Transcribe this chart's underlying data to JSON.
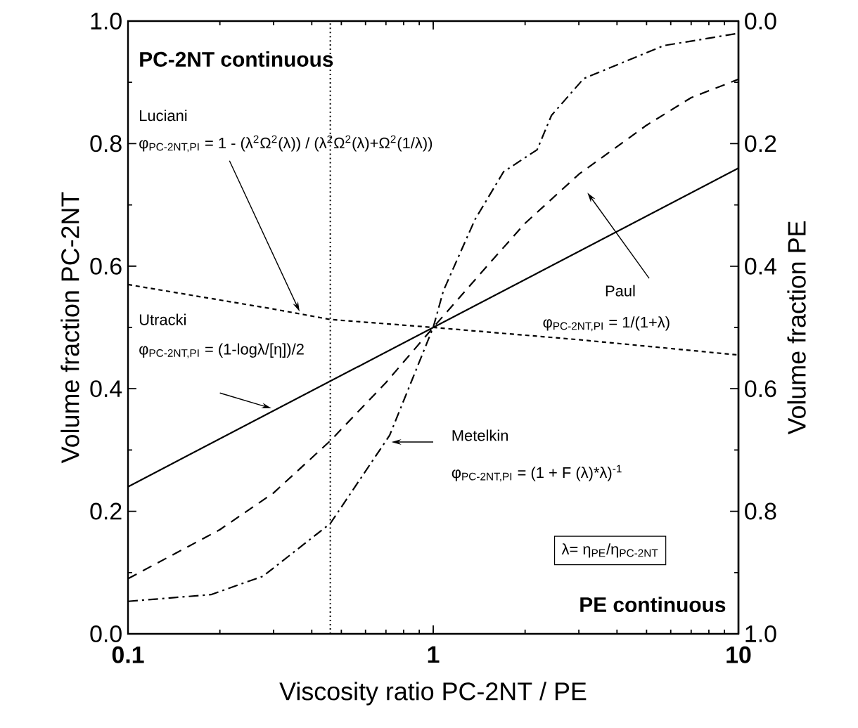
{
  "chart_data": {
    "type": "line",
    "xlabel": "Viscosity ratio PC-2NT / PE",
    "ylabel": "Volume fraction PC-2NT",
    "y2label": "Volume fraction PE",
    "log": "x",
    "xlim": [
      0.1,
      10
    ],
    "xticks": [
      0.1,
      1,
      10
    ],
    "ylim": [
      0,
      1
    ],
    "yticks": [
      {
        "value": 0,
        "label": "0.0"
      },
      0.2,
      0.4,
      0.6,
      0.8,
      {
        "value": 1,
        "label": "1.0"
      }
    ],
    "y2lim": [
      1,
      0
    ],
    "y2ticks": [
      {
        "value": 0,
        "label": "0.0"
      },
      0.2,
      0.4,
      0.6,
      0.8,
      {
        "value": 1,
        "label": "1.0"
      }
    ],
    "series": [
      {
        "color": "#000000",
        "line_style": "solid",
        "x": [
          0.1,
          1,
          10
        ],
        "values": [
          0.24,
          0.5,
          0.76
        ]
      },
      {
        "color": "#000000",
        "line_style": "dashed",
        "x": [
          0.1,
          0.2,
          0.3,
          0.46,
          0.7,
          1,
          1.5,
          2,
          3,
          5,
          7,
          10
        ],
        "values": [
          0.09,
          0.17,
          0.23,
          0.315,
          0.41,
          0.5,
          0.6,
          0.67,
          0.75,
          0.83,
          0.875,
          0.905
        ]
      },
      {
        "color": "#000000",
        "line_style": "dashdot",
        "x": [
          0.1,
          0.187,
          0.277,
          0.46,
          0.72,
          1,
          1.08,
          1.37,
          1.7,
          2.19,
          2.44,
          3.11,
          5.7,
          10
        ],
        "values": [
          0.053,
          0.064,
          0.094,
          0.18,
          0.324,
          0.5,
          0.56,
          0.676,
          0.754,
          0.79,
          0.846,
          0.906,
          0.96,
          0.98
        ]
      },
      {
        "color": "#000000",
        "line_style": "shortdash",
        "x": [
          0.1,
          0.3,
          0.46,
          1,
          3,
          10
        ],
        "values": [
          0.57,
          0.53,
          0.513,
          0.5,
          0.48,
          0.455
        ]
      }
    ],
    "ref_lines": [
      {
        "axis": "x",
        "value": 0.46,
        "line_style": "dotted"
      }
    ],
    "annotations": [
      "PC-2NT continuous",
      "Luciani",
      "φ$_{PC-2NT,PI}$ = 1 - (λ$^{2}$Ω$^{2}$(λ)) / (λ$^{2}$Ω$^{2}$(λ)+Ω$^{2}$(1/λ))",
      "Utracki",
      "φ$_{PC-2NT,PI}$ = (1-logλ/[η])/2",
      "Paul",
      "φ$_{PC-2NT,PI}$ = 1/(1+λ)",
      "Metelkin",
      "φ$_{PC-2NT,PI}$ = (1 + F (λ)*λ)$^{-1}$",
      "λ= η$_{PE}$/η$_{PC-2NT}$",
      "PE continuous"
    ]
  }
}
